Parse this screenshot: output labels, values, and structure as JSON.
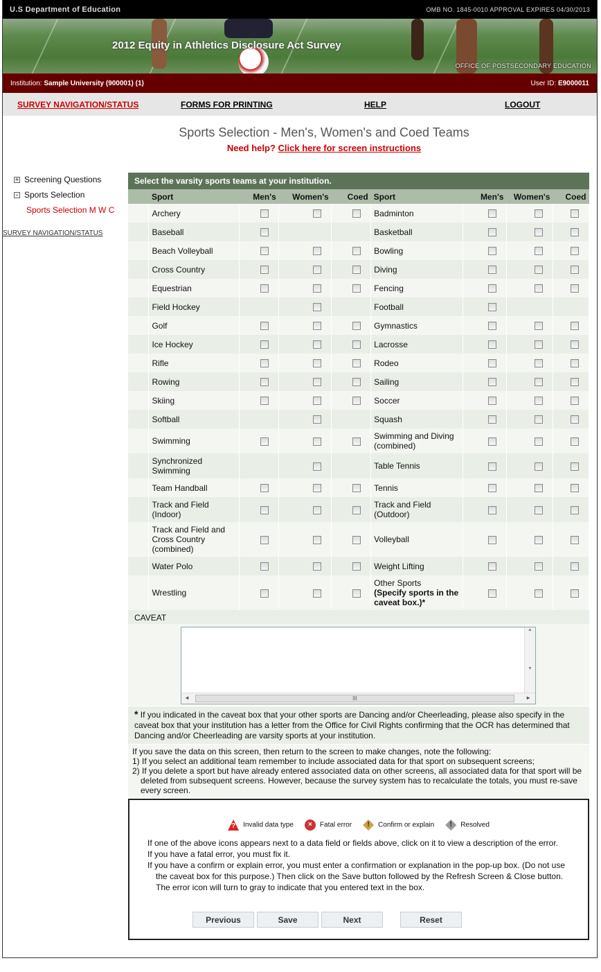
{
  "header": {
    "department": "U.S Department of Education",
    "omb": "OMB NO. 1845-0010 APPROVAL EXPIRES 04/30/2013",
    "banner_title": "2012 Equity in Athletics Disclosure Act Survey",
    "office": "OFFICE OF POSTSECONDARY EDUCATION"
  },
  "institution_bar": {
    "institution_label": "Institution:",
    "institution_value": "Sample University (900001) (1)",
    "user_label": "User ID:",
    "user_value": "E9000011"
  },
  "nav": [
    {
      "label": "SURVEY NAVIGATION/STATUS",
      "active": true
    },
    {
      "label": "FORMS FOR PRINTING"
    },
    {
      "label": "HELP"
    },
    {
      "label": "LOGOUT"
    }
  ],
  "page": {
    "title": "Sports Selection - Men's, Women's and Coed Teams",
    "help_prefix": "Need help?",
    "help_link": "Click here for screen instructions"
  },
  "sidebar": {
    "items": [
      {
        "label": "Screening Questions",
        "toggle": "+"
      },
      {
        "label": "Sports Selection",
        "toggle": "-"
      }
    ],
    "sub_item": "Sports Selection M W C",
    "nav_link": "SURVEY NAVIGATION/STATUS"
  },
  "table": {
    "heading": "Select the varsity sports teams at your institution.",
    "columns": [
      "Sport",
      "Men's",
      "Women's",
      "Coed",
      "Sport",
      "Men's",
      "Women's",
      "Coed"
    ],
    "rows": [
      [
        {
          "sport": "Archery",
          "has": [
            1,
            1,
            1
          ]
        },
        {
          "sport": "Badminton",
          "has": [
            1,
            1,
            1
          ]
        }
      ],
      [
        {
          "sport": "Baseball",
          "has": [
            1,
            0,
            0
          ]
        },
        {
          "sport": "Basketball",
          "has": [
            1,
            1,
            1
          ]
        }
      ],
      [
        {
          "sport": "Beach Volleyball",
          "has": [
            1,
            1,
            1
          ]
        },
        {
          "sport": "Bowling",
          "has": [
            1,
            1,
            1
          ]
        }
      ],
      [
        {
          "sport": "Cross Country",
          "has": [
            1,
            1,
            1
          ]
        },
        {
          "sport": "Diving",
          "has": [
            1,
            1,
            1
          ]
        }
      ],
      [
        {
          "sport": "Equestrian",
          "has": [
            1,
            1,
            1
          ]
        },
        {
          "sport": "Fencing",
          "has": [
            1,
            1,
            1
          ]
        }
      ],
      [
        {
          "sport": "Field Hockey",
          "has": [
            0,
            1,
            0
          ]
        },
        {
          "sport": "Football",
          "has": [
            1,
            0,
            0
          ]
        }
      ],
      [
        {
          "sport": "Golf",
          "has": [
            1,
            1,
            1
          ]
        },
        {
          "sport": "Gymnastics",
          "has": [
            1,
            1,
            1
          ]
        }
      ],
      [
        {
          "sport": "Ice Hockey",
          "has": [
            1,
            1,
            1
          ]
        },
        {
          "sport": "Lacrosse",
          "has": [
            1,
            1,
            1
          ]
        }
      ],
      [
        {
          "sport": "Rifle",
          "has": [
            1,
            1,
            1
          ]
        },
        {
          "sport": "Rodeo",
          "has": [
            1,
            1,
            1
          ]
        }
      ],
      [
        {
          "sport": "Rowing",
          "has": [
            1,
            1,
            1
          ]
        },
        {
          "sport": "Sailing",
          "has": [
            1,
            1,
            1
          ]
        }
      ],
      [
        {
          "sport": "Skiing",
          "has": [
            1,
            1,
            1
          ]
        },
        {
          "sport": "Soccer",
          "has": [
            1,
            1,
            1
          ]
        }
      ],
      [
        {
          "sport": "Softball",
          "has": [
            0,
            1,
            0
          ]
        },
        {
          "sport": "Squash",
          "has": [
            1,
            1,
            1
          ]
        }
      ],
      [
        {
          "sport": "Swimming",
          "has": [
            1,
            1,
            1
          ]
        },
        {
          "sport": "Swimming and Diving (combined)",
          "has": [
            1,
            1,
            1
          ]
        }
      ],
      [
        {
          "sport": "Synchronized Swimming",
          "has": [
            0,
            1,
            0
          ]
        },
        {
          "sport": "Table Tennis",
          "has": [
            1,
            1,
            1
          ]
        }
      ],
      [
        {
          "sport": "Team Handball",
          "has": [
            1,
            1,
            1
          ]
        },
        {
          "sport": "Tennis",
          "has": [
            1,
            1,
            1
          ]
        }
      ],
      [
        {
          "sport": "Track and Field (Indoor)",
          "has": [
            1,
            1,
            1
          ]
        },
        {
          "sport": "Track and Field (Outdoor)",
          "has": [
            1,
            1,
            1
          ]
        }
      ],
      [
        {
          "sport": "Track and Field and Cross Country (combined)",
          "has": [
            1,
            1,
            1
          ]
        },
        {
          "sport": "Volleyball",
          "has": [
            1,
            1,
            1
          ]
        }
      ],
      [
        {
          "sport": "Water Polo",
          "has": [
            1,
            1,
            1
          ]
        },
        {
          "sport": "Weight Lifting",
          "has": [
            1,
            1,
            1
          ]
        }
      ],
      [
        {
          "sport": "Wrestling",
          "has": [
            1,
            1,
            1
          ]
        },
        {
          "sport": "Other Sports",
          "note": "(Specify sports in the caveat box.)*",
          "has": [
            1,
            1,
            1
          ]
        }
      ]
    ],
    "caveat_label": "CAVEAT",
    "caveat_value": ""
  },
  "notes": {
    "asterisk": "*",
    "dancing_note": "If you indicated in the caveat box that your other sports are Dancing and/or Cheerleading, please also specify in the caveat box that your institution has a letter from the Office for Civil Rights confirming that the OCR has determined that Dancing and/or Cheerleading are varsity sports at your institution.",
    "save_intro": "If you save the data on this screen, then return to the screen to make changes, note the following:",
    "save_1": "1) If you select an additional team remember to include associated data for that sport on subsequent screens;",
    "save_2": "2) If you delete a sport but have already entered associated data on other screens, all associated data for that sport will be deleted from subsequent screens. However, because the survey system has to recalculate the totals, you must re-save every screen."
  },
  "errors": {
    "legend": [
      {
        "label": "Invalid data type",
        "icon": "warning-triangle-red"
      },
      {
        "label": "Fatal error",
        "icon": "x-circle-red"
      },
      {
        "label": "Confirm or explain",
        "icon": "diamond-exclamation-gold"
      },
      {
        "label": "Resolved",
        "icon": "diamond-exclamation-gray"
      }
    ],
    "line1": "If one of the above icons appears next to a data field or fields above, click on it to view a description of the error.",
    "line2": "If you have a fatal error, you must fix it.",
    "line3": "If you have a confirm or explain error, you must enter a confirmation or explanation in the pop-up box. (Do not use the caveat box for this purpose.) Then click on the Save button followed by the Refresh Screen & Close button. The error icon will turn to gray to indicate that you entered text in the box."
  },
  "buttons": {
    "previous": "Previous",
    "save": "Save",
    "next": "Next",
    "reset": "Reset"
  }
}
